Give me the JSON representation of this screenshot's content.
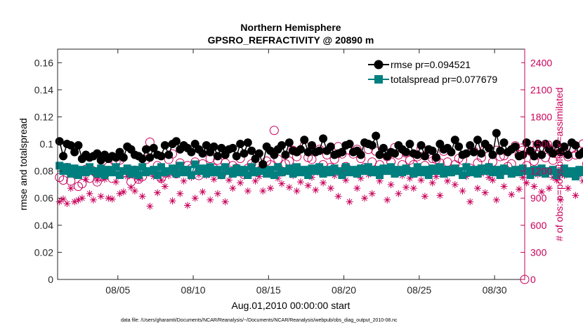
{
  "chart_data": {
    "type": "line",
    "title": "Northern Hemisphere",
    "subtitle": "GPSRO_REFRACTIVITY @ 20890 m",
    "xlabel": "Aug.01,2010 00:00:00 start",
    "ylabel": "rmse and totalspread",
    "y2label": "# of obs: o=possible; ×=assimilated",
    "footnote": "data file: /Users/gharamti/Documents/NCAR/Reanalysis/~/Documents/NCAR/Reanalysis/webpub/obs_diag_output_2010-08.nc",
    "xlim": [
      1,
      32
    ],
    "ylim": [
      0,
      0.17
    ],
    "y2lim": [
      0,
      2550
    ],
    "x_ticks": [
      5,
      10,
      15,
      20,
      25,
      30
    ],
    "x_tick_labels": [
      "08/05",
      "08/10",
      "08/15",
      "08/20",
      "08/25",
      "08/30"
    ],
    "y_ticks": [
      0,
      0.02,
      0.04,
      0.06,
      0.08,
      0.1,
      0.12,
      0.14,
      0.16
    ],
    "y_tick_labels": [
      "0",
      "0.02",
      "0.04",
      "0.06",
      "0.08",
      "0.1",
      "0.12",
      "0.14",
      "0.16"
    ],
    "y2_ticks": [
      0,
      300,
      600,
      900,
      1200,
      1500,
      1800,
      2100,
      2400
    ],
    "y2_tick_labels": [
      "0",
      "300",
      "600",
      "900",
      "1200",
      "1500",
      "1800",
      "2100",
      "2400"
    ],
    "legend_position": "top-right",
    "grid": false,
    "colors": {
      "rmse": "#000000",
      "totalspread": "#007f7f",
      "obs": "#c8005a"
    },
    "x_step_days": 0.25,
    "x_start": 1.125,
    "series": [
      {
        "name": "rmse pr=0.094521",
        "axis": "left",
        "marker": "circle",
        "values": [
          0.102,
          0.091,
          0.1,
          0.099,
          0.094,
          0.099,
          0.089,
          0.092,
          0.09,
          0.091,
          0.093,
          0.088,
          0.092,
          0.089,
          0.091,
          0.09,
          0.094,
          0.09,
          0.098,
          0.096,
          0.092,
          0.091,
          0.089,
          0.096,
          0.09,
          0.097,
          0.092,
          0.091,
          0.099,
          0.092,
          0.1,
          0.102,
          0.096,
          0.099,
          0.097,
          0.094,
          0.1,
          0.096,
          0.093,
          0.099,
          0.094,
          0.098,
          0.091,
          0.097,
          0.092,
          0.096,
          0.097,
          0.091,
          0.1,
          0.093,
          0.101,
          0.095,
          0.089,
          0.093,
          0.085,
          0.098,
          0.095,
          0.092,
          0.096,
          0.099,
          0.092,
          0.101,
          0.095,
          0.094,
          0.096,
          0.103,
          0.094,
          0.099,
          0.094,
          0.095,
          0.104,
          0.095,
          0.098,
          0.092,
          0.093,
          0.094,
          0.099,
          0.1,
          0.094,
          0.095,
          0.092,
          0.101,
          0.1,
          0.099,
          0.106,
          0.092,
          0.097,
          0.091,
          0.094,
          0.093,
          0.099,
          0.096,
          0.094,
          0.1,
          0.093,
          0.092,
          0.099,
          0.091,
          0.096,
          0.095,
          0.09,
          0.1,
          0.096,
          0.097,
          0.094,
          0.103,
          0.098,
          0.092,
          0.093,
          0.099,
          0.094,
          0.103,
          0.093,
          0.1,
          0.097,
          0.092,
          0.108,
          0.095,
          0.101,
          0.094,
          0.096,
          0.098,
          0.091,
          0.092,
          0.101,
          0.095,
          0.091,
          0.1,
          0.092,
          0.1,
          0.096,
          0.093,
          0.1,
          0.094,
          0.098,
          0.092,
          0.101,
          0.099,
          0.092,
          0.094,
          0.097,
          0.093,
          0.091,
          0.095,
          0.098,
          0.092,
          0.09,
          0.093,
          0.09,
          0.094,
          0.097,
          0.092,
          0.091,
          0.097,
          0.09,
          0.093,
          0.091,
          0.096,
          0.092,
          0.089,
          0.095,
          0.09,
          0.092,
          0.094,
          0.091,
          0.096,
          0.09,
          0.092,
          0.089,
          0.094,
          0.091,
          0.089,
          0.093,
          0.09,
          0.089,
          0.097,
          0.095,
          0.092,
          0.094,
          0.098,
          0.09,
          0.093,
          0.09,
          0.095,
          0.09
        ]
      },
      {
        "name": "totalspread pr=0.077679",
        "axis": "left",
        "marker": "square",
        "values": [
          0.084,
          0.08,
          0.083,
          0.078,
          0.082,
          0.077,
          0.081,
          0.079,
          0.083,
          0.08,
          0.078,
          0.082,
          0.077,
          0.081,
          0.079,
          0.083,
          0.077,
          0.08,
          0.082,
          0.078,
          0.081,
          0.077,
          0.083,
          0.079,
          0.08,
          0.081,
          0.077,
          0.083,
          0.079,
          0.08,
          0.082,
          0.078,
          0.084,
          0.079,
          0.081,
          0.077,
          0.085,
          0.08,
          0.082,
          0.078,
          0.083,
          0.079,
          0.081,
          0.077,
          0.083,
          0.08,
          0.078,
          0.082,
          0.079,
          0.081,
          0.077,
          0.083,
          0.079,
          0.08,
          0.082,
          0.078,
          0.081,
          0.077,
          0.083,
          0.079,
          0.08,
          0.082,
          0.078,
          0.083,
          0.079,
          0.081,
          0.077,
          0.082,
          0.08,
          0.083,
          0.078,
          0.081,
          0.079,
          0.082,
          0.08,
          0.077,
          0.083,
          0.079,
          0.081,
          0.078,
          0.082,
          0.08,
          0.083,
          0.079,
          0.081,
          0.077,
          0.082,
          0.08,
          0.083,
          0.078,
          0.081,
          0.079,
          0.082,
          0.08,
          0.078,
          0.083,
          0.079,
          0.081,
          0.077,
          0.082,
          0.08,
          0.083,
          0.078,
          0.081,
          0.079,
          0.082,
          0.08,
          0.077,
          0.083,
          0.079,
          0.081,
          0.078,
          0.082,
          0.08,
          0.083,
          0.079,
          0.081,
          0.077,
          0.082,
          0.08,
          0.078,
          0.081,
          0.079,
          0.082,
          0.08,
          0.077,
          0.081,
          0.079,
          0.082,
          0.078,
          0.08,
          0.081,
          0.077,
          0.079,
          0.082,
          0.078,
          0.08,
          0.076,
          0.081,
          0.079,
          0.077,
          0.08,
          0.078,
          0.076,
          0.081,
          0.077,
          0.079,
          0.075,
          0.08,
          0.078,
          0.076,
          0.079,
          0.077,
          0.075,
          0.08,
          0.076,
          0.078,
          0.075,
          0.079,
          0.077,
          0.076,
          0.078,
          0.075,
          0.079,
          0.077,
          0.076,
          0.078,
          0.075,
          0.077,
          0.079,
          0.076,
          0.074,
          0.078,
          0.076,
          0.075,
          0.077,
          0.073,
          0.076,
          0.078,
          0.074,
          0.076,
          0.073,
          0.077,
          0.075,
          0.072
        ]
      },
      {
        "name": "possible",
        "axis": "right",
        "marker": "open-circle",
        "values": [
          1130,
          1100,
          1240,
          1090,
          1180,
          1030,
          1060,
          1220,
          1120,
          1200,
          1080,
          1140,
          1160,
          1250,
          1120,
          1300,
          1320,
          1180,
          1220,
          1080,
          1210,
          1110,
          1140,
          1330,
          1520,
          1190,
          1260,
          1120,
          1180,
          1330,
          1390,
          1170,
          1290,
          1210,
          1260,
          1230,
          1300,
          1150,
          1280,
          1190,
          1340,
          1230,
          1320,
          1160,
          1290,
          1210,
          1260,
          1230,
          1340,
          1160,
          1230,
          1280,
          1270,
          1200,
          1240,
          1310,
          1270,
          1650,
          1330,
          1190,
          1280,
          1310,
          1430,
          1360,
          1200,
          1480,
          1350,
          1330,
          1220,
          1440,
          1270,
          1380,
          1240,
          1330,
          1470,
          1390,
          1250,
          1430,
          1390,
          1440,
          1340,
          1240,
          1440,
          1300,
          1420,
          1270,
          1430,
          1360,
          1300,
          1460,
          1380,
          1270,
          1400,
          1320,
          1270,
          1360,
          1450,
          1260,
          1390,
          1340,
          1330,
          1290,
          1420,
          1300,
          1200,
          1270,
          1340,
          1320,
          1210,
          1230,
          1420,
          1290,
          1350,
          1450,
          1240,
          1300,
          1430,
          1360,
          1370,
          1250,
          1280,
          1480,
          1380,
          1430,
          1260,
          1420,
          1310,
          1380,
          1450,
          1350,
          1450,
          1320,
          1390,
          1440,
          1420,
          1360,
          1450,
          1380,
          1420,
          1500,
          1280,
          1370,
          1400,
          1220,
          1440,
          1360,
          1250,
          1330,
          1390,
          1410,
          1440,
          1230,
          1320,
          1490,
          1350,
          1080,
          1030,
          950,
          1060,
          1110,
          1160,
          1070,
          1180,
          1080,
          1140,
          1350,
          1290,
          1280,
          1230,
          1370,
          1100,
          1140,
          1360,
          1110,
          1180,
          1120,
          1290,
          1160,
          1260,
          1190,
          1330,
          1090,
          820,
          930,
          1100,
          1120
        ]
      },
      {
        "name": "assimilated",
        "axis": "right",
        "marker": "asterisk",
        "values": [
          860,
          890,
          840,
          1010,
          860,
          880,
          900,
          1110,
          950,
          880,
          1100,
          920,
          1110,
          900,
          890,
          1080,
          950,
          970,
          1140,
          1020,
          980,
          1110,
          920,
          1200,
          810,
          1140,
          960,
          1100,
          1030,
          1150,
          870,
          1190,
          950,
          1090,
          820,
          1130,
          900,
          1160,
          970,
          1150,
          880,
          1110,
          950,
          1180,
          860,
          1100,
          1010,
          1210,
          1070,
          1160,
          980,
          1220,
          1090,
          1140,
          980,
          1210,
          1010,
          1150,
          1120,
          1060,
          1190,
          1020,
          1150,
          980,
          1080,
          1210,
          1040,
          1130,
          990,
          1180,
          1070,
          1220,
          1010,
          1150,
          920,
          1200,
          1100,
          860,
          1180,
          1010,
          1120,
          900,
          1160,
          950,
          1180,
          1090,
          1210,
          880,
          1050,
          1190,
          950,
          1150,
          1020,
          1120,
          1010,
          1180,
          1100,
          920,
          1210,
          1070,
          1140,
          930,
          1210,
          1090,
          1180,
          1050,
          1200,
          980,
          1140,
          860,
          1190,
          1010,
          1170,
          960,
          1130,
          1100,
          880,
          1160,
          1030,
          1200,
          940,
          1180,
          1000,
          1130,
          1070,
          1210,
          1030,
          1160,
          970,
          1200,
          1010,
          1130,
          1100,
          880,
          1150,
          1010,
          1190,
          930,
          1150,
          1090,
          1210,
          990,
          1150,
          890,
          1100,
          1050,
          1180,
          950,
          1140,
          1010,
          1180,
          1100,
          1030,
          1120,
          870,
          1080,
          940,
          1150,
          830,
          1030,
          1090,
          1140,
          890,
          1160,
          1010,
          1130,
          1060,
          1180,
          920,
          1070,
          1110,
          890,
          1040,
          1130,
          880,
          1090,
          1010,
          1120,
          910,
          1150,
          1020,
          590,
          850,
          960,
          750,
          850
        ]
      }
    ]
  }
}
